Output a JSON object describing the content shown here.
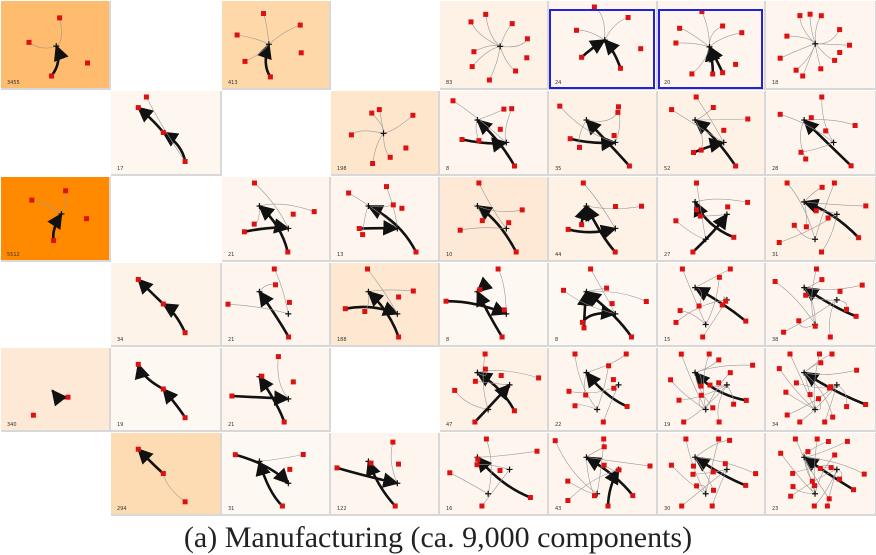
{
  "caption": "(a) Manufacturing (ca. 9,000 components)",
  "colors": {
    "node": "#dd1111",
    "edge": "#111111",
    "thin_edge": "#999999",
    "selection": "#2222dd",
    "grid_line": "#d8d8d8"
  },
  "grid": {
    "columns": 8,
    "rows": 6,
    "cells": [
      {
        "r": 0,
        "c": 0,
        "fill": "#ffbb6e",
        "count": "3455",
        "motif": "star",
        "nodes": 4,
        "edges": 3,
        "thick": 1
      },
      {
        "r": 0,
        "c": 1,
        "fill": "#ffffff",
        "count": "",
        "motif": "empty",
        "nodes": 0,
        "edges": 0,
        "thick": 0
      },
      {
        "r": 0,
        "c": 2,
        "fill": "#fed8a8",
        "count": "413",
        "motif": "star",
        "nodes": 6,
        "edges": 5,
        "thick": 1
      },
      {
        "r": 0,
        "c": 3,
        "fill": "#ffffff",
        "count": "",
        "motif": "empty",
        "nodes": 0,
        "edges": 0,
        "thick": 0
      },
      {
        "r": 0,
        "c": 4,
        "fill": "#fef1e5",
        "count": "83",
        "motif": "star",
        "nodes": 9,
        "edges": 8,
        "thick": 0
      },
      {
        "r": 0,
        "c": 5,
        "fill": "#fef6ee",
        "count": "24",
        "motif": "star",
        "nodes": 6,
        "edges": 5,
        "thick": 2,
        "selected": true
      },
      {
        "r": 0,
        "c": 6,
        "fill": "#fef6ee",
        "count": "20",
        "motif": "star",
        "nodes": 9,
        "edges": 8,
        "thick": 2,
        "selected": true
      },
      {
        "r": 0,
        "c": 7,
        "fill": "#fef6ee",
        "count": "18",
        "motif": "star",
        "nodes": 12,
        "edges": 11,
        "thick": 0
      },
      {
        "r": 1,
        "c": 0,
        "fill": "#ffffff",
        "count": "",
        "motif": "empty",
        "nodes": 0,
        "edges": 0,
        "thick": 0
      },
      {
        "r": 1,
        "c": 1,
        "fill": "#fef7f0",
        "count": "17",
        "motif": "chain",
        "nodes": 4,
        "edges": 3,
        "thick": 2
      },
      {
        "r": 1,
        "c": 2,
        "fill": "#ffffff",
        "count": "",
        "motif": "empty",
        "nodes": 0,
        "edges": 0,
        "thick": 0
      },
      {
        "r": 1,
        "c": 3,
        "fill": "#fee6cc",
        "count": "198",
        "motif": "star",
        "nodes": 7,
        "edges": 6,
        "thick": 0
      },
      {
        "r": 1,
        "c": 4,
        "fill": "#fef6ee",
        "count": "8",
        "motif": "double",
        "nodes": 7,
        "edges": 6,
        "thick": 2
      },
      {
        "r": 1,
        "c": 5,
        "fill": "#fef1e5",
        "count": "35",
        "motif": "double",
        "nodes": 7,
        "edges": 6,
        "thick": 2
      },
      {
        "r": 1,
        "c": 6,
        "fill": "#fef1e5",
        "count": "52",
        "motif": "double",
        "nodes": 8,
        "edges": 7,
        "thick": 2
      },
      {
        "r": 1,
        "c": 7,
        "fill": "#fef6ee",
        "count": "28",
        "motif": "double",
        "nodes": 8,
        "edges": 7,
        "thick": 1
      },
      {
        "r": 2,
        "c": 0,
        "fill": "#ff8a00",
        "count": "5512",
        "motif": "star",
        "nodes": 4,
        "edges": 3,
        "thick": 1
      },
      {
        "r": 2,
        "c": 1,
        "fill": "#ffffff",
        "count": "",
        "motif": "empty",
        "nodes": 0,
        "edges": 0,
        "thick": 0
      },
      {
        "r": 2,
        "c": 2,
        "fill": "#fef6ee",
        "count": "21",
        "motif": "double",
        "nodes": 6,
        "edges": 5,
        "thick": 2
      },
      {
        "r": 2,
        "c": 3,
        "fill": "#fef6ee",
        "count": "13",
        "motif": "double",
        "nodes": 7,
        "edges": 6,
        "thick": 2
      },
      {
        "r": 2,
        "c": 4,
        "fill": "#fee9d6",
        "count": "10",
        "motif": "double",
        "nodes": 6,
        "edges": 5,
        "thick": 1
      },
      {
        "r": 2,
        "c": 5,
        "fill": "#fef1e5",
        "count": "44",
        "motif": "double",
        "nodes": 6,
        "edges": 5,
        "thick": 3
      },
      {
        "r": 2,
        "c": 6,
        "fill": "#fef6ee",
        "count": "27",
        "motif": "triple",
        "nodes": 8,
        "edges": 7,
        "thick": 2
      },
      {
        "r": 2,
        "c": 7,
        "fill": "#fef1e5",
        "count": "31",
        "motif": "triple",
        "nodes": 11,
        "edges": 10,
        "thick": 1
      },
      {
        "r": 3,
        "c": 0,
        "fill": "#ffffff",
        "count": "",
        "motif": "empty",
        "nodes": 0,
        "edges": 0,
        "thick": 0
      },
      {
        "r": 3,
        "c": 1,
        "fill": "#fef3e8",
        "count": "34",
        "motif": "chain",
        "nodes": 3,
        "edges": 2,
        "thick": 2
      },
      {
        "r": 3,
        "c": 2,
        "fill": "#fef6ee",
        "count": "21",
        "motif": "double",
        "nodes": 5,
        "edges": 4,
        "thick": 1
      },
      {
        "r": 3,
        "c": 3,
        "fill": "#fee8d1",
        "count": "188",
        "motif": "double",
        "nodes": 6,
        "edges": 5,
        "thick": 2
      },
      {
        "r": 3,
        "c": 4,
        "fill": "#fef8f2",
        "count": "8",
        "motif": "cross",
        "nodes": 5,
        "edges": 4,
        "thick": 3
      },
      {
        "r": 3,
        "c": 5,
        "fill": "#fef8f2",
        "count": "8",
        "motif": "cross",
        "nodes": 8,
        "edges": 7,
        "thick": 3
      },
      {
        "r": 3,
        "c": 6,
        "fill": "#fef6ee",
        "count": "15",
        "motif": "triple",
        "nodes": 10,
        "edges": 9,
        "thick": 1
      },
      {
        "r": 3,
        "c": 7,
        "fill": "#fef6ee",
        "count": "38",
        "motif": "triple",
        "nodes": 12,
        "edges": 11,
        "thick": 1
      },
      {
        "r": 4,
        "c": 0,
        "fill": "#fee9d6",
        "count": "340",
        "motif": "pair",
        "nodes": 2,
        "edges": 1,
        "thick": 1
      },
      {
        "r": 4,
        "c": 1,
        "fill": "#fef8f2",
        "count": "19",
        "motif": "chain",
        "nodes": 3,
        "edges": 2,
        "thick": 2
      },
      {
        "r": 4,
        "c": 2,
        "fill": "#fef6ee",
        "count": "21",
        "motif": "double",
        "nodes": 5,
        "edges": 4,
        "thick": 2
      },
      {
        "r": 4,
        "c": 3,
        "fill": "#ffffff",
        "count": "",
        "motif": "empty",
        "nodes": 0,
        "edges": 0,
        "thick": 0
      },
      {
        "r": 4,
        "c": 4,
        "fill": "#fef1e5",
        "count": "47",
        "motif": "triple",
        "nodes": 8,
        "edges": 7,
        "thick": 2
      },
      {
        "r": 4,
        "c": 5,
        "fill": "#fef6ee",
        "count": "22",
        "motif": "triple",
        "nodes": 10,
        "edges": 9,
        "thick": 1
      },
      {
        "r": 4,
        "c": 6,
        "fill": "#fef6ee",
        "count": "19",
        "motif": "triple",
        "nodes": 16,
        "edges": 15,
        "thick": 1
      },
      {
        "r": 4,
        "c": 7,
        "fill": "#fef6ee",
        "count": "34",
        "motif": "triple",
        "nodes": 18,
        "edges": 17,
        "thick": 1
      },
      {
        "r": 5,
        "c": 0,
        "fill": "#ffffff",
        "count": "",
        "motif": "empty",
        "nodes": 0,
        "edges": 0,
        "thick": 0
      },
      {
        "r": 5,
        "c": 1,
        "fill": "#fedcb3",
        "count": "294",
        "motif": "chain",
        "nodes": 3,
        "edges": 2,
        "thick": 1
      },
      {
        "r": 5,
        "c": 2,
        "fill": "#fef8f2",
        "count": "31",
        "motif": "double",
        "nodes": 4,
        "edges": 3,
        "thick": 2
      },
      {
        "r": 5,
        "c": 3,
        "fill": "#fef6ee",
        "count": "122",
        "motif": "double",
        "nodes": 5,
        "edges": 4,
        "thick": 2
      },
      {
        "r": 5,
        "c": 4,
        "fill": "#fef6ee",
        "count": "16",
        "motif": "triple",
        "nodes": 8,
        "edges": 7,
        "thick": 1
      },
      {
        "r": 5,
        "c": 5,
        "fill": "#fef6ee",
        "count": "43",
        "motif": "triple",
        "nodes": 11,
        "edges": 10,
        "thick": 2
      },
      {
        "r": 5,
        "c": 6,
        "fill": "#fef6ee",
        "count": "30",
        "motif": "triple",
        "nodes": 14,
        "edges": 13,
        "thick": 1
      },
      {
        "r": 5,
        "c": 7,
        "fill": "#fef6ee",
        "count": "23",
        "motif": "triple",
        "nodes": 20,
        "edges": 19,
        "thick": 1
      }
    ]
  }
}
